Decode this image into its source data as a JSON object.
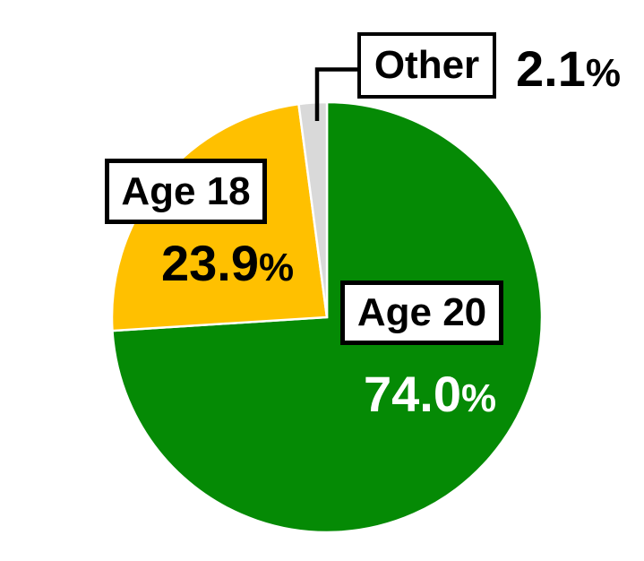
{
  "chart_data": {
    "type": "pie",
    "title": "",
    "labels": [
      "Age 20",
      "Age 18",
      "Other"
    ],
    "values": [
      74.0,
      23.9,
      2.1
    ],
    "display_values": [
      "74.0",
      "23.9",
      "2.1"
    ],
    "percent_sign": "%",
    "colors": [
      "#058A05",
      "#FFC000",
      "#D9D9D9"
    ],
    "value_label_colors": [
      "#FFFFFF",
      "#000000",
      "#000000"
    ],
    "slice_border_color": "#FFFFFF",
    "label_box_fill": "#FFFFFF",
    "label_box_border_color": "#000000",
    "callout_line_color": "#000000",
    "start_angle_deg": 0,
    "direction": "clockwise",
    "legend_position": "none",
    "background": "#FFFFFF"
  }
}
